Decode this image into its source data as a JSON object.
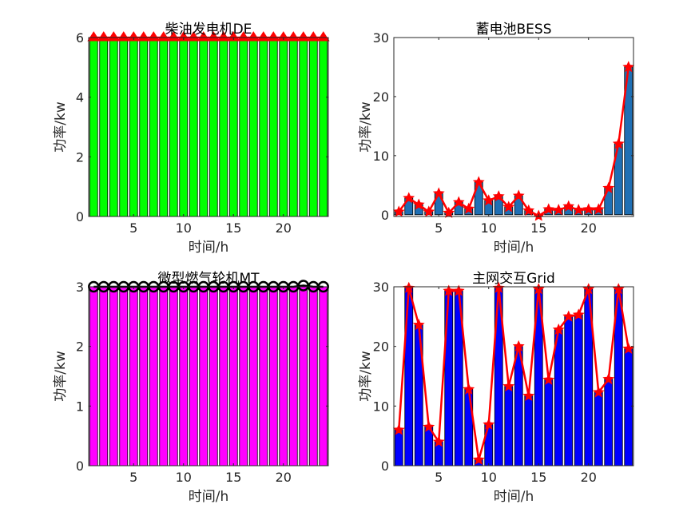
{
  "chart_data": [
    {
      "type": "bar",
      "title": "柴油发电机DE",
      "xlabel": "时间/h",
      "ylabel": "功率/kw",
      "x": [
        1,
        2,
        3,
        4,
        5,
        6,
        7,
        8,
        9,
        10,
        11,
        12,
        13,
        14,
        15,
        16,
        17,
        18,
        19,
        20,
        21,
        22,
        23,
        24
      ],
      "xlim": [
        0.5,
        24.5
      ],
      "ylim": [
        0,
        6
      ],
      "xticks": [
        5,
        10,
        15,
        20
      ],
      "yticks": [
        0,
        2,
        4,
        6
      ],
      "series": [
        {
          "values": [
            6,
            6,
            6,
            6,
            6,
            6,
            6,
            6,
            6,
            6,
            6,
            6,
            6,
            6,
            6,
            6,
            6,
            6,
            6,
            6,
            6,
            6,
            6,
            6
          ],
          "color": "#00ff00",
          "line": "#ff0000",
          "marker": "triangle"
        }
      ]
    },
    {
      "type": "bar",
      "title": "蓄电池BESS",
      "xlabel": "时间/h",
      "ylabel": "功率/kw",
      "x": [
        1,
        2,
        3,
        4,
        5,
        6,
        7,
        8,
        9,
        10,
        11,
        12,
        13,
        14,
        15,
        16,
        17,
        18,
        19,
        20,
        21,
        22,
        23,
        24
      ],
      "xlim": [
        0.5,
        24.5
      ],
      "ylim": [
        -0.3,
        30
      ],
      "xticks": [
        5,
        10,
        15,
        20
      ],
      "yticks": [
        0,
        10,
        20,
        30
      ],
      "series": [
        {
          "values": [
            0.5,
            2.8,
            1.7,
            0.5,
            3.6,
            0.3,
            2.1,
            1.0,
            5.5,
            2.4,
            3.1,
            1.3,
            3.2,
            0.7,
            -0.2,
            0.9,
            0.8,
            1.4,
            0.8,
            0.9,
            0.9,
            4.5,
            12.0,
            25.0
          ],
          "color": "#1f6fb4",
          "line": "#ff0000",
          "marker": "star"
        }
      ]
    },
    {
      "type": "bar",
      "title": "微型燃气轮机MT",
      "xlabel": "时间/h",
      "ylabel": "功率/kw",
      "x": [
        1,
        2,
        3,
        4,
        5,
        6,
        7,
        8,
        9,
        10,
        11,
        12,
        13,
        14,
        15,
        16,
        17,
        18,
        19,
        20,
        21,
        22,
        23,
        24
      ],
      "xlim": [
        0.5,
        24.5
      ],
      "ylim": [
        0,
        3
      ],
      "xticks": [
        5,
        10,
        15,
        20
      ],
      "yticks": [
        0,
        1,
        2,
        3
      ],
      "series": [
        {
          "values": [
            3,
            3,
            3,
            3,
            3,
            3,
            3,
            3,
            3,
            3,
            3,
            3,
            3,
            3,
            3,
            3,
            3,
            3,
            3,
            3,
            3,
            3.02,
            3,
            3
          ],
          "color": "#ff00ff",
          "line": "#000000",
          "marker": "circle"
        }
      ]
    },
    {
      "type": "bar",
      "title": "主网交互Grid",
      "xlabel": "时间/h",
      "ylabel": "功率/kw",
      "x": [
        1,
        2,
        3,
        4,
        5,
        6,
        7,
        8,
        9,
        10,
        11,
        12,
        13,
        14,
        15,
        16,
        17,
        18,
        19,
        20,
        21,
        22,
        23,
        24
      ],
      "xlim": [
        0.5,
        24.5
      ],
      "ylim": [
        0,
        30
      ],
      "xticks": [
        5,
        10,
        15,
        20
      ],
      "yticks": [
        0,
        10,
        20,
        30
      ],
      "series": [
        {
          "values": [
            6.0,
            29.8,
            23.6,
            6.5,
            4.0,
            29.3,
            29.3,
            12.8,
            1.0,
            6.9,
            29.8,
            13.3,
            20.0,
            11.7,
            29.6,
            14.4,
            22.8,
            25.0,
            25.3,
            29.6,
            12.3,
            14.5,
            29.6,
            19.6
          ],
          "color": "#0000ff",
          "line": "#ff0000",
          "marker": "star"
        }
      ]
    }
  ]
}
